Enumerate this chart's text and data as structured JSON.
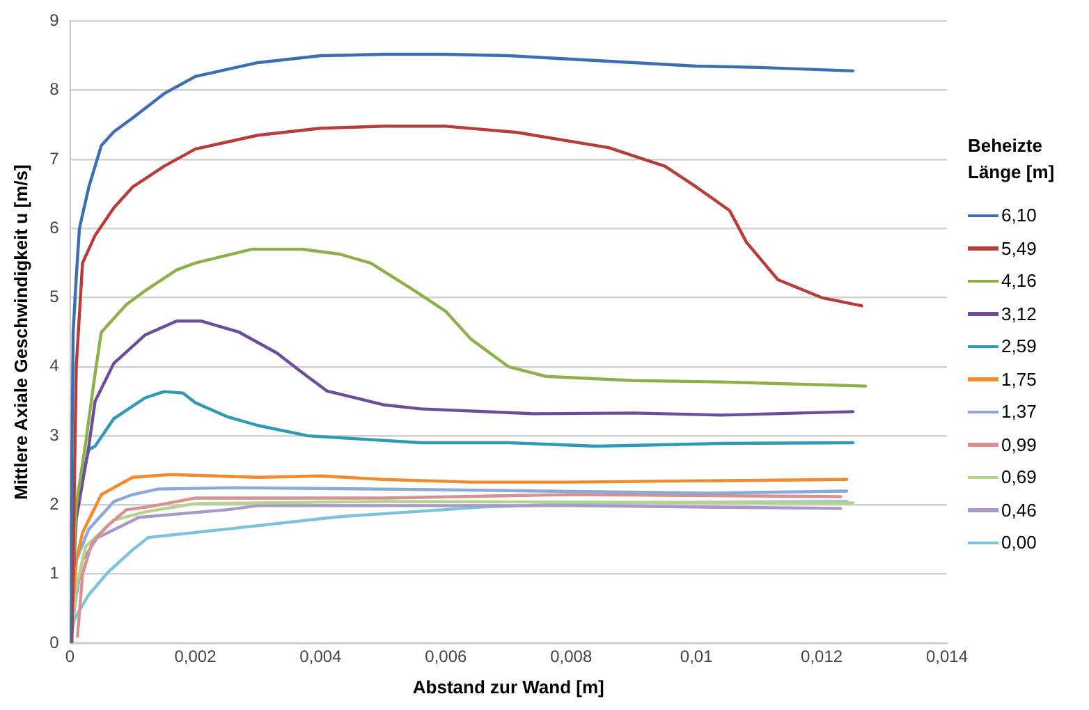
{
  "chart_data": {
    "type": "line",
    "xlabel": "Abstand zur Wand [m]",
    "ylabel": "Mittlere Axiale Geschwindigkeit u [m/s]",
    "legend_title": "Beheizte Länge [m]",
    "legend": "right",
    "grid": "y",
    "marker": "none",
    "line_style": "solid",
    "xlim": [
      0,
      0.014
    ],
    "xticks": [
      0,
      {
        "value": 0.002,
        "label": "0,002"
      },
      {
        "value": 0.004,
        "label": "0,004"
      },
      {
        "value": 0.006,
        "label": "0,006"
      },
      {
        "value": 0.008,
        "label": "0,008"
      },
      {
        "value": 0.01,
        "label": "0,01"
      },
      {
        "value": 0.012,
        "label": "0,012"
      },
      {
        "value": 0.014,
        "label": "0,014"
      }
    ],
    "ylim": [
      0,
      9
    ],
    "yticks": [
      0,
      1,
      2,
      3,
      4,
      5,
      6,
      7,
      8,
      9
    ],
    "series": [
      {
        "name": "6,10",
        "color": "#3c6eb4",
        "x": [
          0,
          5e-05,
          0.0001,
          0.00015,
          0.0003,
          0.0005,
          0.0007,
          0.001,
          0.0015,
          0.002,
          0.0025,
          0.003,
          0.004,
          0.005,
          0.006,
          0.007,
          0.008,
          0.009,
          0.01,
          0.011,
          0.0125
        ],
        "values": [
          0,
          4.5,
          5.3,
          6.0,
          6.6,
          7.2,
          7.4,
          7.6,
          7.95,
          8.2,
          8.3,
          8.4,
          8.5,
          8.52,
          8.52,
          8.5,
          8.45,
          8.4,
          8.35,
          8.33,
          8.28
        ]
      },
      {
        "name": "5,49",
        "color": "#b83c3a",
        "x": [
          3e-05,
          0.0001,
          0.0002,
          0.0004,
          0.0007,
          0.001,
          0.0015,
          0.002,
          0.003,
          0.004,
          0.005,
          0.006,
          0.00714,
          0.0086,
          0.0095,
          0.01,
          0.01053,
          0.0108,
          0.0113,
          0.012,
          0.01264
        ],
        "values": [
          0,
          4.0,
          5.5,
          5.9,
          6.3,
          6.6,
          6.9,
          7.15,
          7.35,
          7.45,
          7.48,
          7.48,
          7.39,
          7.17,
          6.9,
          6.6,
          6.26,
          5.8,
          5.26,
          5.0,
          4.88
        ]
      },
      {
        "name": "4,16",
        "color": "#8db04a",
        "x": [
          0,
          0.0001,
          0.00025,
          0.0004,
          0.0005,
          0.0009,
          0.0012,
          0.0017,
          0.002,
          0.0029,
          0.0037,
          0.0043,
          0.0048,
          0.0055,
          0.006,
          0.0064,
          0.007,
          0.0076,
          0.009,
          0.0104,
          0.0127
        ],
        "values": [
          0,
          2.0,
          2.9,
          3.9,
          4.5,
          4.9,
          5.1,
          5.4,
          5.5,
          5.7,
          5.7,
          5.63,
          5.5,
          5.1,
          4.8,
          4.4,
          4.0,
          3.86,
          3.8,
          3.78,
          3.72
        ]
      },
      {
        "name": "3,12",
        "color": "#6a4e9a",
        "x": [
          0,
          0.0001,
          0.0003,
          0.0004,
          0.0007,
          0.0012,
          0.0017,
          0.0021,
          0.0027,
          0.0033,
          0.0037,
          0.0041,
          0.005,
          0.0056,
          0.0074,
          0.009,
          0.0104,
          0.0125
        ],
        "values": [
          0,
          1.8,
          2.85,
          3.5,
          4.05,
          4.46,
          4.66,
          4.66,
          4.5,
          4.2,
          3.92,
          3.65,
          3.45,
          3.39,
          3.32,
          3.33,
          3.3,
          3.35
        ]
      },
      {
        "name": "2,59",
        "color": "#2e9ab5",
        "x": [
          0,
          0.0001,
          0.0003,
          0.0004,
          0.0007,
          0.0012,
          0.0015,
          0.0018,
          0.002,
          0.0025,
          0.003,
          0.0038,
          0.0056,
          0.007,
          0.0084,
          0.0104,
          0.0125
        ],
        "values": [
          0,
          2.0,
          2.8,
          2.85,
          3.25,
          3.55,
          3.64,
          3.62,
          3.48,
          3.28,
          3.15,
          3.0,
          2.9,
          2.9,
          2.85,
          2.89,
          2.9
        ]
      },
      {
        "name": "1,75",
        "color": "#f28a2e",
        "x": [
          0,
          0.0001,
          0.0002,
          0.0005,
          0.001,
          0.0016,
          0.003,
          0.004,
          0.005,
          0.0064,
          0.008,
          0.0124
        ],
        "values": [
          0,
          1.2,
          1.6,
          2.15,
          2.4,
          2.44,
          2.4,
          2.42,
          2.37,
          2.33,
          2.33,
          2.37
        ]
      },
      {
        "name": "1,37",
        "color": "#8aa8d8",
        "x": [
          0,
          0.0001,
          0.0003,
          0.0007,
          0.001,
          0.0014,
          0.0026,
          0.006,
          0.0102,
          0.0124
        ],
        "values": [
          0,
          1.2,
          1.65,
          2.05,
          2.15,
          2.23,
          2.25,
          2.22,
          2.17,
          2.2
        ]
      },
      {
        "name": "0,99",
        "color": "#d99090",
        "x": [
          0.00012,
          0.0002,
          0.00035,
          0.0006,
          0.0009,
          0.0013,
          0.002,
          0.005,
          0.008,
          0.0123
        ],
        "values": [
          0.1,
          1.0,
          1.45,
          1.7,
          1.93,
          1.98,
          2.1,
          2.1,
          2.15,
          2.12
        ]
      },
      {
        "name": "0,69",
        "color": "#b6d28c",
        "x": [
          0,
          0.0001,
          0.00025,
          0.0007,
          0.0012,
          0.002,
          0.005,
          0.0125
        ],
        "values": [
          0,
          0.8,
          1.4,
          1.78,
          1.9,
          2.02,
          2.05,
          2.03
        ]
      },
      {
        "name": "0,46",
        "color": "#a89ac8",
        "x": [
          0,
          0.0001,
          0.0002,
          0.00043,
          0.0011,
          0.0025,
          0.003,
          0.008,
          0.0123
        ],
        "values": [
          0,
          0.7,
          1.2,
          1.52,
          1.82,
          1.93,
          1.99,
          1.99,
          1.95
        ]
      },
      {
        "name": "0,00",
        "color": "#7ec3de",
        "x": [
          0,
          7e-05,
          0.0003,
          0.0006,
          0.001,
          0.00125,
          0.0025,
          0.0043,
          0.0066,
          0.0085,
          0.0124
        ],
        "values": [
          0,
          0.35,
          0.7,
          1.02,
          1.35,
          1.53,
          1.65,
          1.83,
          1.97,
          2.03,
          2.05
        ]
      }
    ]
  }
}
